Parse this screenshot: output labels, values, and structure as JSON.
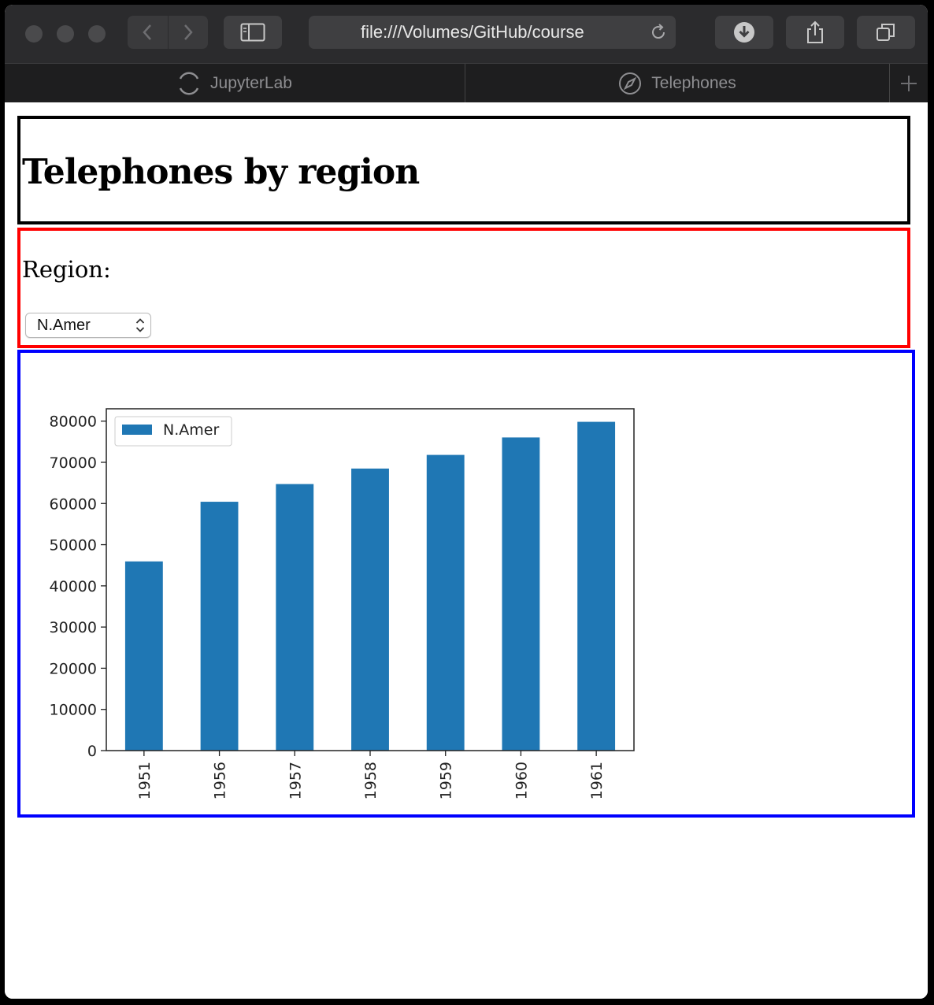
{
  "browser": {
    "address_url": "file:///Volumes/GitHub/course",
    "tabs": [
      {
        "label": "JupyterLab",
        "icon": "spinner-icon"
      },
      {
        "label": "Telephones",
        "icon": "compass-icon"
      }
    ]
  },
  "page": {
    "heading": "Telephones by region",
    "region_label": "Region:",
    "region_select": {
      "value": "N.Amer"
    }
  },
  "colors": {
    "bar": "#1f77b4",
    "title_border": "#000000",
    "region_border": "#ff0000",
    "chart_border": "#0000ff"
  },
  "chart_data": {
    "type": "bar",
    "categories": [
      "1951",
      "1956",
      "1957",
      "1958",
      "1959",
      "1960",
      "1961"
    ],
    "series": [
      {
        "name": "N.Amer",
        "values": [
          45939,
          60423,
          64721,
          68484,
          71799,
          76036,
          79831
        ]
      }
    ],
    "yticks": [
      "0",
      "10000",
      "20000",
      "30000",
      "40000",
      "50000",
      "60000",
      "70000",
      "80000"
    ],
    "ylim": [
      0,
      83000
    ],
    "legend": "upper left",
    "grid": false
  }
}
